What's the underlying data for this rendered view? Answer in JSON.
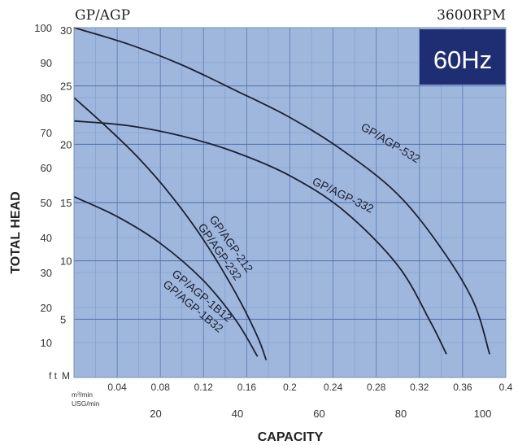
{
  "header": {
    "left_title": "GP/AGP",
    "right_title": "3600RPM",
    "badge": "60Hz"
  },
  "chart_data": {
    "type": "line",
    "xlabel": "CAPACITY",
    "ylabel": "TOTAL HEAD",
    "x_units": {
      "primary": "m³/min",
      "secondary": "USG/min"
    },
    "y_units": {
      "ft_label": "f t",
      "m_label": "M"
    },
    "xlim": [
      0,
      0.4
    ],
    "ylim_m": [
      0,
      30
    ],
    "ylim_ft": [
      0,
      100
    ],
    "x_ticks": [
      "0.04",
      "0.08",
      "0.12",
      "0.16",
      "0.2",
      "0.24",
      "0.28",
      "0.32",
      "0.36",
      "0.4"
    ],
    "usg_ticks": [
      "20",
      "40",
      "60",
      "80",
      "100"
    ],
    "m_ticks": [
      "5",
      "10",
      "15",
      "20",
      "25",
      "30"
    ],
    "ft_ticks": [
      "10",
      "20",
      "30",
      "40",
      "50",
      "60",
      "70",
      "80",
      "90",
      "100"
    ],
    "grid": true,
    "series": [
      {
        "name": "GP/AGP-532",
        "label_lines": [
          "GP/AGP-532"
        ],
        "points": [
          [
            0,
            30
          ],
          [
            0.05,
            28.6
          ],
          [
            0.1,
            26.8
          ],
          [
            0.15,
            24.6
          ],
          [
            0.2,
            22.3
          ],
          [
            0.25,
            19.4
          ],
          [
            0.3,
            15.7
          ],
          [
            0.34,
            11.1
          ],
          [
            0.37,
            6.5
          ],
          [
            0.385,
            2.0
          ]
        ]
      },
      {
        "name": "GP/AGP-332",
        "label_lines": [
          "GP/AGP-332"
        ],
        "points": [
          [
            0,
            22
          ],
          [
            0.05,
            21.6
          ],
          [
            0.1,
            20.7
          ],
          [
            0.15,
            19.3
          ],
          [
            0.2,
            17.3
          ],
          [
            0.25,
            14.3
          ],
          [
            0.3,
            9.6
          ],
          [
            0.33,
            4.8
          ],
          [
            0.345,
            2.0
          ]
        ]
      },
      {
        "name": "GP/AGP-212/232",
        "label_lines": [
          "GP/AGP-212",
          "GP/AGP-232"
        ],
        "points": [
          [
            0,
            24
          ],
          [
            0.03,
            21.5
          ],
          [
            0.06,
            18.8
          ],
          [
            0.09,
            15.6
          ],
          [
            0.12,
            11.8
          ],
          [
            0.15,
            7.2
          ],
          [
            0.17,
            3.5
          ],
          [
            0.178,
            1.5
          ]
        ]
      },
      {
        "name": "GP/AGP-1B12/1B32",
        "label_lines": [
          "GP/AGP-1B12",
          "GP/AGP-1B32"
        ],
        "points": [
          [
            0,
            15.5
          ],
          [
            0.04,
            13.8
          ],
          [
            0.08,
            11.5
          ],
          [
            0.12,
            8.3
          ],
          [
            0.15,
            4.9
          ],
          [
            0.17,
            1.8
          ]
        ]
      }
    ]
  }
}
